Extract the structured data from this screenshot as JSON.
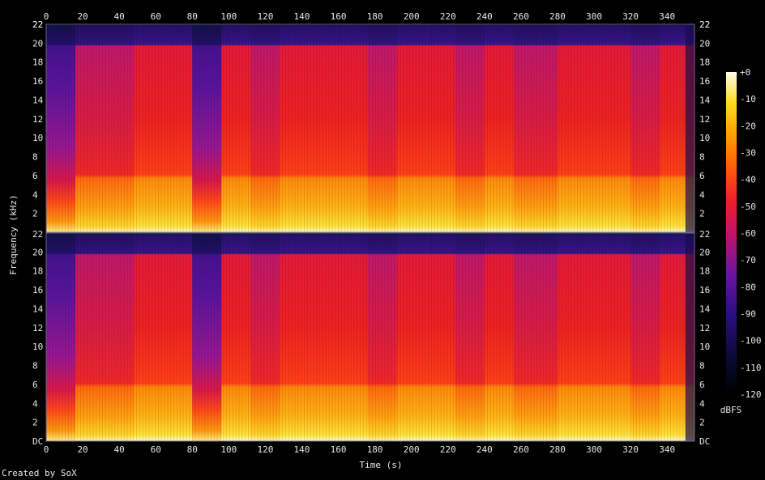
{
  "chart_data": {
    "type": "heatmap",
    "subtype": "spectrogram",
    "channels": 2,
    "xlabel": "Time (s)",
    "ylabel": "Frequency (kHz)",
    "x_ticks": [
      0,
      20,
      40,
      60,
      80,
      100,
      120,
      140,
      160,
      180,
      200,
      220,
      240,
      260,
      280,
      300,
      320,
      340
    ],
    "xlim": [
      0,
      355
    ],
    "y_tick_labels_top_channel": [
      "2",
      "4",
      "6",
      "8",
      "10",
      "12",
      "14",
      "16",
      "18",
      "20",
      "22"
    ],
    "y_tick_labels_bottom_channel": [
      "DC",
      "2",
      "4",
      "6",
      "8",
      "10",
      "12",
      "14",
      "16",
      "18",
      "20"
    ],
    "ylim_khz": [
      0,
      22
    ],
    "colorbar": {
      "unit": "dBFS",
      "ticks": [
        "+0",
        "-10",
        "-20",
        "-30",
        "-40",
        "-50",
        "-60",
        "-70",
        "-80",
        "-90",
        "-100",
        "-110",
        "-120"
      ],
      "range": [
        -120,
        0
      ]
    },
    "segments_s": [
      {
        "start": 0,
        "end": 16,
        "level": "low"
      },
      {
        "start": 16,
        "end": 48,
        "level": "mid"
      },
      {
        "start": 48,
        "end": 80,
        "level": "high"
      },
      {
        "start": 80,
        "end": 96,
        "level": "low"
      },
      {
        "start": 96,
        "end": 112,
        "level": "high"
      },
      {
        "start": 112,
        "end": 128,
        "level": "mid"
      },
      {
        "start": 128,
        "end": 176,
        "level": "high"
      },
      {
        "start": 176,
        "end": 192,
        "level": "mid"
      },
      {
        "start": 192,
        "end": 224,
        "level": "high"
      },
      {
        "start": 224,
        "end": 240,
        "level": "mid"
      },
      {
        "start": 240,
        "end": 256,
        "level": "high"
      },
      {
        "start": 256,
        "end": 280,
        "level": "mid"
      },
      {
        "start": 280,
        "end": 320,
        "level": "high"
      },
      {
        "start": 320,
        "end": 336,
        "level": "mid"
      },
      {
        "start": 336,
        "end": 355,
        "level": "high"
      }
    ],
    "credit": "Created by SoX"
  }
}
